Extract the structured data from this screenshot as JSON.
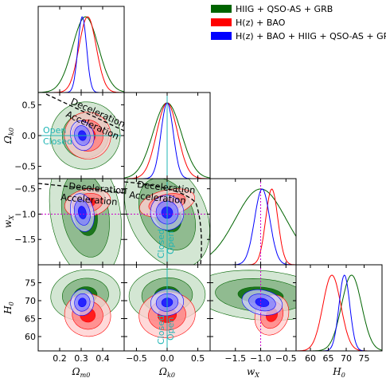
{
  "chart_data": {
    "type": "corner-triangle",
    "parameters": [
      {
        "key": "om",
        "label": "Ω_m0",
        "range": [
          0.1,
          0.5
        ],
        "ticks": [
          0.2,
          0.3,
          0.4
        ],
        "tick_labels": [
          "0.2",
          "0.3",
          "0.4"
        ]
      },
      {
        "key": "ok",
        "label": "Ω_k0",
        "range": [
          -0.7,
          0.7
        ],
        "ticks": [
          -0.5,
          0.0,
          0.5
        ],
        "tick_labels": [
          "−0.5",
          "0.0",
          "0.5"
        ]
      },
      {
        "key": "wx",
        "label": "w_X",
        "range": [
          -2.0,
          -0.3
        ],
        "ticks": [
          -1.5,
          -1.0,
          -0.5
        ],
        "tick_labels": [
          "−1.5",
          "−1.0",
          "−0.5"
        ]
      },
      {
        "key": "h0",
        "label": "H_0",
        "range": [
          56,
          80
        ],
        "ticks": [
          60,
          65,
          70,
          75
        ],
        "tick_labels": [
          "60",
          "65",
          "70",
          "75"
        ]
      }
    ],
    "series": [
      {
        "name": "HIIG + QSO-AS + GRB",
        "color": "#006400",
        "fill": [
          "#006400",
          "#7fb07f",
          "#c8e0c8"
        ],
        "mean": {
          "om": 0.32,
          "ok": 0.0,
          "wx": -1.0,
          "h0": 71.5
        },
        "sigma": {
          "om": 0.06,
          "ok": 0.23,
          "wx": 0.5,
          "h0": 2.8
        }
      },
      {
        "name": "H(z) + BAO",
        "color": "#ff0000",
        "fill": [
          "#ff0000",
          "#ff8080",
          "#ffd0d0"
        ],
        "mean": {
          "om": 0.33,
          "ok": 0.0,
          "wx": -0.78,
          "h0": 66.0
        },
        "sigma": {
          "om": 0.04,
          "ok": 0.17,
          "wx": 0.12,
          "h0": 2.5
        }
      },
      {
        "name": "H(z) + BAO + HIIG + QSO-AS + GRB",
        "color": "#0000ff",
        "fill": [
          "#0000ff",
          "#7f7fff",
          "#d0d0ff"
        ],
        "mean": {
          "om": 0.305,
          "ok": 0.0,
          "wx": -0.97,
          "h0": 69.5
        },
        "sigma": {
          "om": 0.02,
          "ok": 0.1,
          "wx": 0.15,
          "h0": 1.5
        }
      }
    ],
    "reference_lines": {
      "ok": 0.0,
      "wx": -1.0
    },
    "annotations": {
      "deceleration": "Deceleration",
      "acceleration": "Acceleration",
      "open": "Open",
      "closed": "Closed"
    },
    "legend_position": "top-right",
    "grid": false
  }
}
